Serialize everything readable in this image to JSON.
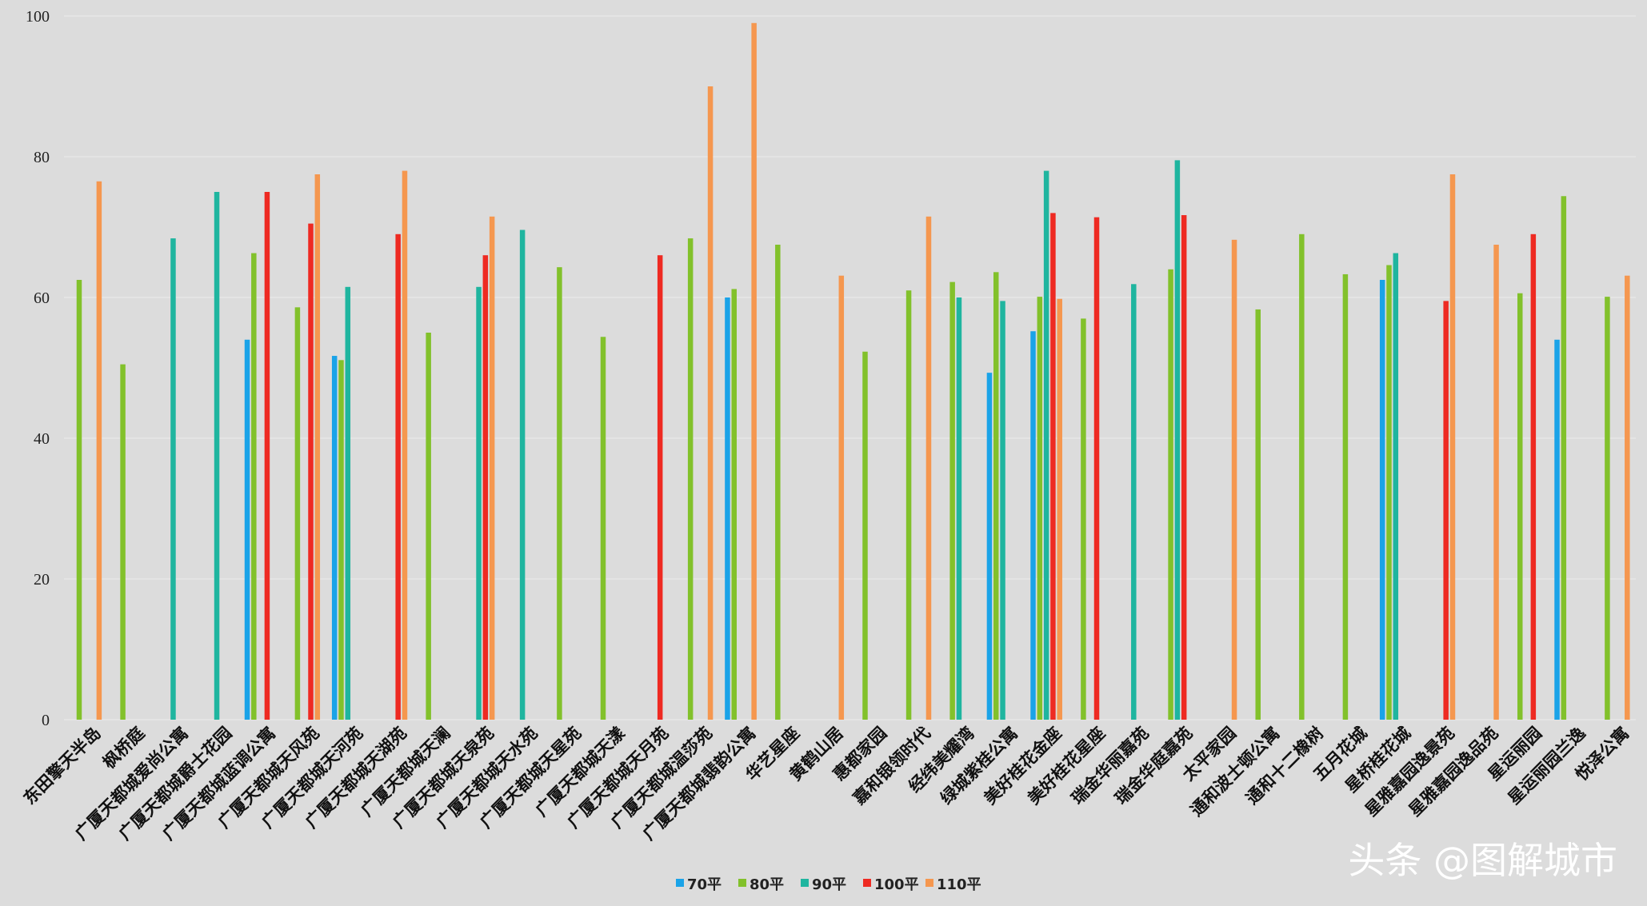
{
  "chart_data": {
    "type": "bar",
    "title": "",
    "xlabel": "",
    "ylabel": "",
    "ylim": [
      0,
      100
    ],
    "yticks": [
      0,
      20,
      40,
      60,
      80,
      100
    ],
    "grid": true,
    "legend_position": "bottom-center",
    "categories": [
      "东田擎天半岛",
      "枫桥庭",
      "广厦天都城爱尚公寓",
      "广厦天都城爵士花园",
      "广厦天都城蓝调公寓",
      "广厦天都城天风苑",
      "广厦天都城天河苑",
      "广厦天都城天湖苑",
      "广厦天都城天澜",
      "广厦天都城天泉苑",
      "广厦天都城天水苑",
      "广厦天都城天星苑",
      "广厦天都城天漾",
      "广厦天都城天月苑",
      "广厦天都城温莎苑",
      "广厦天都城翡韵公寓",
      "华艺星座",
      "黄鹤山居",
      "惠都家园",
      "嘉和银领时代",
      "经纬美耀湾",
      "绿城紫桂公寓",
      "美好桂花金座",
      "美好桂花星座",
      "瑞金华丽嘉苑",
      "瑞金华庭嘉苑",
      "太平家园",
      "通和波士顿公寓",
      "通和十二橡树",
      "五月花城",
      "星桥桂花城",
      "星雅嘉园逸景苑",
      "星雅嘉园逸品苑",
      "星运丽园",
      "星运丽园兰逸",
      "悦泽公寓"
    ],
    "series": [
      {
        "name": "70平",
        "color": "#1aa3e8",
        "values": [
          null,
          null,
          null,
          null,
          54,
          null,
          51.7,
          null,
          null,
          null,
          null,
          null,
          null,
          null,
          null,
          60,
          null,
          null,
          null,
          null,
          null,
          49.3,
          55.2,
          null,
          null,
          null,
          null,
          null,
          null,
          null,
          62.5,
          null,
          null,
          null,
          54,
          null
        ]
      },
      {
        "name": "80平",
        "color": "#82c12b",
        "values": [
          62.5,
          50.5,
          null,
          null,
          66.3,
          58.6,
          51.1,
          null,
          55,
          null,
          null,
          64.3,
          54.4,
          null,
          68.4,
          61.2,
          67.5,
          null,
          52.3,
          61,
          62.2,
          63.6,
          60.1,
          57,
          null,
          64,
          null,
          58.3,
          69,
          63.3,
          64.6,
          null,
          null,
          60.6,
          74.4,
          60.1
        ]
      },
      {
        "name": "90平",
        "color": "#1fb59f",
        "values": [
          null,
          null,
          68.4,
          75,
          null,
          null,
          61.5,
          null,
          null,
          61.5,
          69.6,
          null,
          null,
          null,
          null,
          null,
          null,
          null,
          null,
          null,
          60,
          59.5,
          78,
          null,
          61.9,
          79.5,
          null,
          null,
          null,
          null,
          66.3,
          null,
          null,
          null,
          null,
          null
        ]
      },
      {
        "name": "100平",
        "color": "#ee2a22",
        "values": [
          null,
          null,
          null,
          null,
          75,
          70.5,
          null,
          69,
          null,
          66,
          null,
          null,
          null,
          66,
          null,
          null,
          null,
          null,
          null,
          null,
          null,
          null,
          72,
          71.4,
          null,
          71.7,
          null,
          null,
          null,
          null,
          null,
          59.5,
          null,
          69,
          null,
          null
        ]
      },
      {
        "name": "110平",
        "color": "#f5974f",
        "values": [
          76.5,
          null,
          null,
          null,
          null,
          77.5,
          null,
          78,
          null,
          71.5,
          null,
          null,
          null,
          null,
          90,
          99,
          null,
          63.1,
          null,
          71.5,
          null,
          null,
          59.8,
          null,
          null,
          null,
          68.2,
          null,
          null,
          null,
          null,
          77.5,
          67.5,
          null,
          null,
          63.1
        ]
      }
    ]
  },
  "watermark": "头条 @图解城市"
}
